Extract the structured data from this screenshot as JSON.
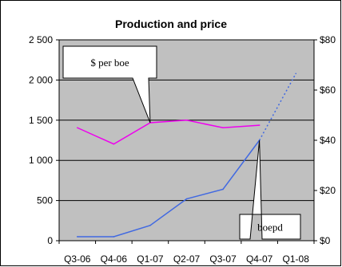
{
  "chart_data": {
    "type": "line",
    "title": "Production and price",
    "categories": [
      "Q3-06",
      "Q4-06",
      "Q1-07",
      "Q2-07",
      "Q3-07",
      "Q4-07",
      "Q1-08"
    ],
    "y_left": {
      "ticks": [
        "0",
        "500",
        "1 000",
        "1 500",
        "2 000",
        "2 500"
      ],
      "ylim": [
        0,
        2500
      ]
    },
    "y_right": {
      "ticks": [
        "$0",
        "$20",
        "$40",
        "$60",
        "$80"
      ],
      "ylim": [
        0,
        80
      ]
    },
    "grid": true,
    "series": [
      {
        "name": "boepd",
        "axis": "left",
        "color": "#4169e1",
        "values": [
          50,
          50,
          190,
          520,
          640,
          1250,
          2080
        ],
        "projected_from_index": 5
      },
      {
        "name": "$ per boe",
        "axis": "right",
        "color": "#ee00ee",
        "values": [
          45,
          38.5,
          47,
          48,
          45,
          46,
          null
        ]
      }
    ],
    "annotations": [
      {
        "text": "$ per boe",
        "target_series": "$ per boe",
        "target_category": "Q1-07"
      },
      {
        "text": "boepd",
        "target_series": "boepd",
        "target_category": "Q4-07"
      }
    ]
  }
}
